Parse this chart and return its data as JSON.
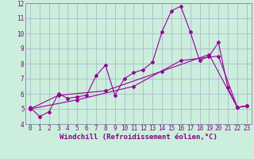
{
  "background_color": "#cceedd",
  "grid_color": "#aabbcc",
  "line_color": "#990099",
  "xlim": [
    -0.5,
    23.5
  ],
  "ylim": [
    4,
    12
  ],
  "xtick_labels": [
    "0",
    "1",
    "2",
    "3",
    "4",
    "5",
    "6",
    "7",
    "8",
    "9",
    "10",
    "11",
    "12",
    "13",
    "14",
    "15",
    "16",
    "17",
    "18",
    "19",
    "20",
    "21",
    "22",
    "23"
  ],
  "xticks": [
    0,
    1,
    2,
    3,
    4,
    5,
    6,
    7,
    8,
    9,
    10,
    11,
    12,
    13,
    14,
    15,
    16,
    17,
    18,
    19,
    20,
    21,
    22,
    23
  ],
  "yticks": [
    4,
    5,
    6,
    7,
    8,
    9,
    10,
    11,
    12
  ],
  "xlabel": "Windchill (Refroidissement éolien,°C)",
  "series1_x": [
    0,
    1,
    2,
    3,
    4,
    5,
    6,
    7,
    8,
    9,
    10,
    11,
    12,
    13,
    14,
    15,
    16,
    17,
    18,
    19,
    20,
    21,
    22,
    23
  ],
  "series1_y": [
    5.1,
    4.5,
    4.8,
    6.0,
    5.7,
    5.8,
    5.9,
    7.2,
    7.9,
    5.9,
    7.0,
    7.4,
    7.6,
    8.1,
    10.1,
    11.5,
    11.8,
    10.1,
    8.2,
    8.5,
    9.4,
    6.4,
    5.1,
    5.2
  ],
  "series2_x": [
    0,
    3,
    8,
    14,
    19,
    22,
    23
  ],
  "series2_y": [
    5.0,
    5.9,
    6.2,
    7.5,
    8.6,
    5.1,
    5.2
  ],
  "series3_x": [
    0,
    5,
    11,
    16,
    20,
    22,
    23
  ],
  "series3_y": [
    5.0,
    5.6,
    6.5,
    8.2,
    8.5,
    5.1,
    5.2
  ],
  "marker": "D",
  "marker_size": 2.0,
  "linewidth": 0.8,
  "font_color": "#880088",
  "tick_fontsize": 5.5,
  "label_fontsize": 6.5
}
